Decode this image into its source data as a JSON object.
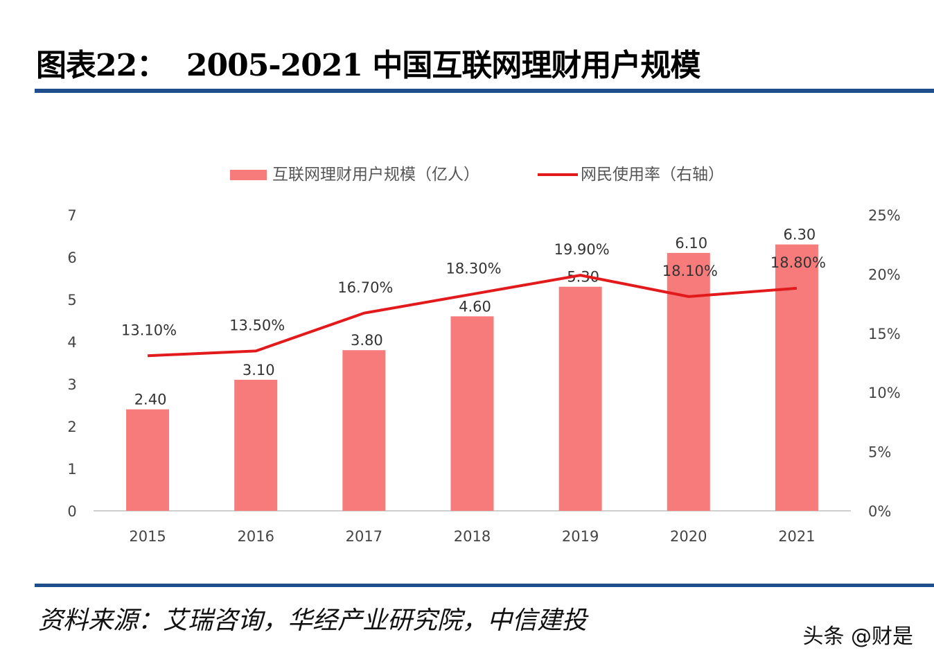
{
  "title": "图表22：  2005-2021 中国互联网理财用户规模",
  "source": "资料来源：艾瑞咨询，华经产业研究院，中信建投",
  "watermark": "头条 @财是",
  "colors": {
    "bar": "#f77b7b",
    "line": "#e31a1c",
    "rule": "#1f4e8c",
    "axis_text": "#444444"
  },
  "chart_data": {
    "type": "bar+line",
    "categories": [
      "2015",
      "2016",
      "2017",
      "2018",
      "2019",
      "2020",
      "2021"
    ],
    "series": [
      {
        "name": "互联网理财用户规模（亿人）",
        "type": "bar",
        "axis": "left",
        "values": [
          2.4,
          3.1,
          3.8,
          4.6,
          5.3,
          6.1,
          6.3
        ],
        "labels": [
          "2.40",
          "3.10",
          "3.80",
          "4.60",
          "5.30",
          "6.10",
          "6.30"
        ]
      },
      {
        "name": "网民使用率（右轴）",
        "type": "line",
        "axis": "right",
        "values": [
          13.1,
          13.5,
          16.7,
          18.3,
          19.9,
          18.1,
          18.8
        ],
        "labels": [
          "13.10%",
          "13.50%",
          "16.70%",
          "18.30%",
          "19.90%",
          "18.10%",
          "18.80%"
        ]
      }
    ],
    "left_axis": {
      "range": [
        0,
        7
      ],
      "ticks": [
        "0",
        "1",
        "2",
        "3",
        "4",
        "5",
        "6",
        "7"
      ]
    },
    "right_axis": {
      "range": [
        0,
        25
      ],
      "ticks": [
        "0%",
        "5%",
        "10%",
        "15%",
        "20%",
        "25%"
      ]
    },
    "legend_position": "top",
    "grid": false
  }
}
